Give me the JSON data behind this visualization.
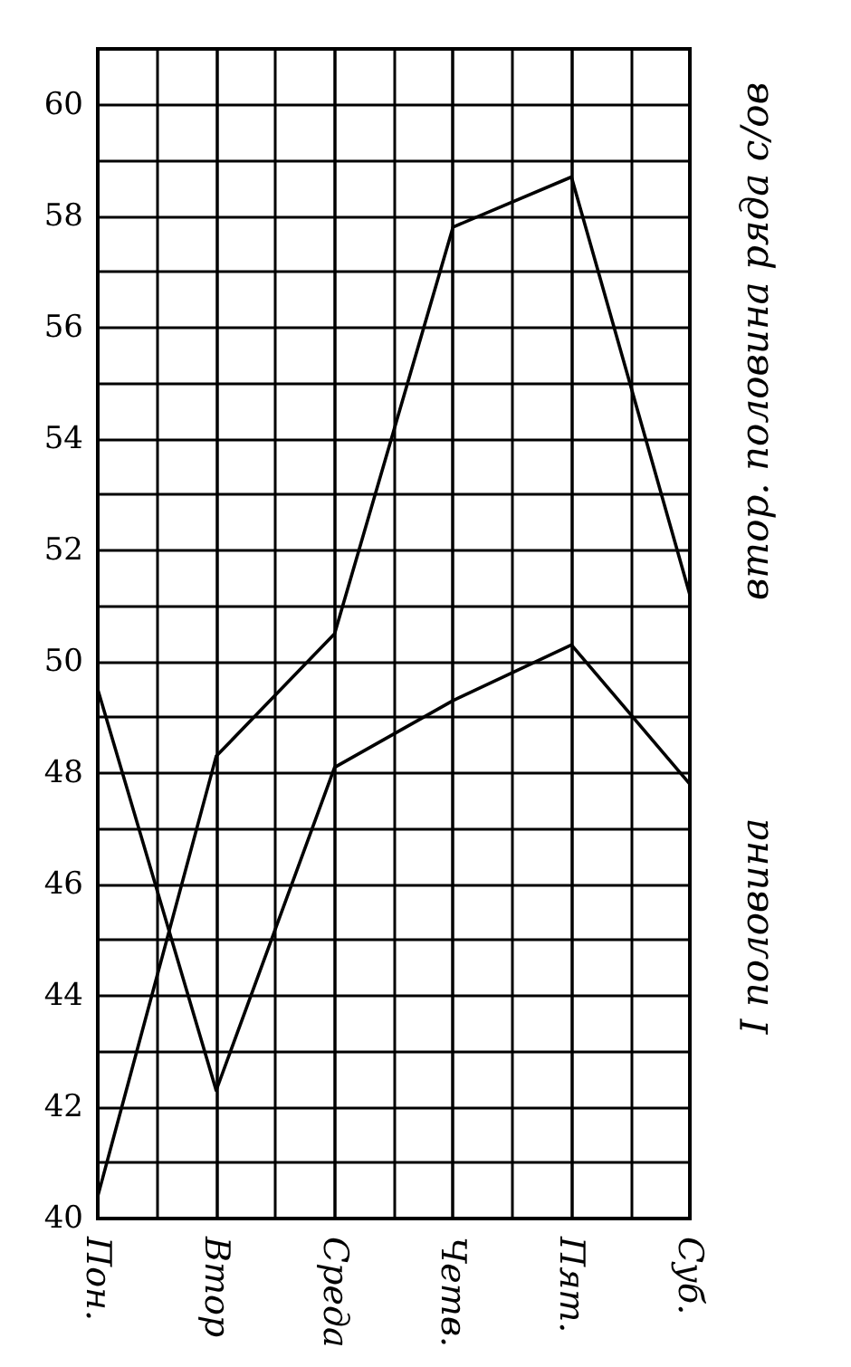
{
  "chart_data": {
    "type": "line",
    "categories": [
      "Пон.",
      "Втор",
      "Среда",
      "Четв.",
      "Пят.",
      "Суб."
    ],
    "series": [
      {
        "name": "втор. половина ряда с/ов",
        "color": "#000000",
        "values": [
          40.4,
          48.3,
          50.5,
          57.8,
          58.7,
          51.2
        ]
      },
      {
        "name": "I половина",
        "color": "#000000",
        "values": [
          49.5,
          42.3,
          48.1,
          49.3,
          50.3,
          47.8
        ]
      }
    ],
    "ylim": [
      40,
      61
    ],
    "yticks": [
      40,
      {
        "value": 41,
        "label": null
      },
      42,
      {
        "value": 43,
        "label": null
      },
      44,
      {
        "value": 45,
        "label": null
      },
      46,
      {
        "value": 47,
        "label": null
      },
      48,
      {
        "value": 49,
        "label": null
      },
      50,
      {
        "value": 51,
        "label": null
      },
      52,
      {
        "value": 53,
        "label": null
      },
      54,
      {
        "value": 55,
        "label": null
      },
      56,
      {
        "value": 57,
        "label": null
      },
      58,
      {
        "value": 59,
        "label": null
      },
      60
    ],
    "grid": true,
    "legend": false,
    "marker": "none",
    "line_style": "solid"
  }
}
